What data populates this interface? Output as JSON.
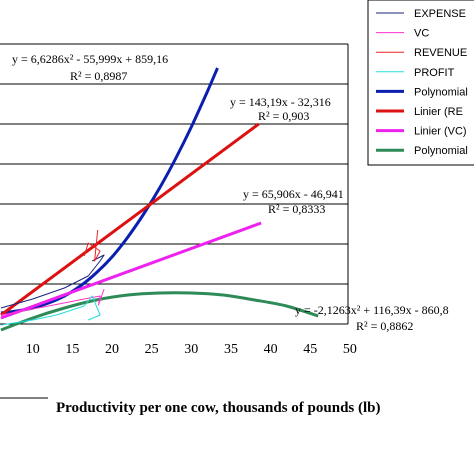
{
  "chart_data": {
    "type": "line",
    "xlabel": "Productivity per one cow, thousands of pounds (lb)",
    "ylabel": "",
    "xlim": [
      6,
      50
    ],
    "x_ticks": [
      10,
      15,
      20,
      25,
      30,
      35,
      40,
      45,
      50
    ],
    "grid": "horizontal",
    "legend_position": "top-right",
    "legend": [
      {
        "label": "EXPENSE",
        "color": "#1a237e",
        "width": 1
      },
      {
        "label": "VC",
        "color": "#ff33cc",
        "width": 1
      },
      {
        "label": "REVENUE",
        "color": "#ee2222",
        "width": 1
      },
      {
        "label": "PROFIT",
        "color": "#22dddd",
        "width": 1
      },
      {
        "label": "Polynomial",
        "color": "#0a1fb0",
        "width": 3
      },
      {
        "label": "Linier  (RE",
        "color": "#dd1111",
        "width": 3
      },
      {
        "label": "Linier (VC)",
        "color": "#ee22ee",
        "width": 3
      },
      {
        "label": "Polynomial",
        "color": "#2e8b57",
        "width": 3
      }
    ],
    "annotations": [
      {
        "line1": "y = 6,6286x² - 55,999x + 859,16",
        "line2": "R² = 0,8987"
      },
      {
        "line1": "y = 143,19x - 32,316",
        "line2": "R² = 0,903"
      },
      {
        "line1": "y = 65,906x - 46,941",
        "line2": "R² = 0,8333"
      },
      {
        "line1": "y = -2,1263x² + 116,39x - 860,8",
        "line2": "R² = 0,8862"
      }
    ],
    "series": [
      {
        "name": "Polynomial",
        "color": "#0a1fb0",
        "width": 3,
        "x": [
          6,
          8,
          10,
          12,
          14,
          16,
          18,
          20,
          22,
          24,
          26,
          28,
          30,
          32,
          33.3
        ],
        "y": [
          1.1,
          1.3,
          1.6,
          2.1,
          2.8,
          3.8,
          5.1,
          6.7,
          8.7,
          11.0,
          13.6,
          16.5,
          19.7,
          23.2,
          25.6
        ]
      },
      {
        "name": "Linier  (RE",
        "color": "#dd1111",
        "width": 3,
        "x": [
          6,
          38.5
        ],
        "y": [
          0.9,
          20.0
        ]
      },
      {
        "name": "Linier (VC)",
        "color": "#ee22ee",
        "width": 3,
        "x": [
          6,
          38.8
        ],
        "y": [
          0.6,
          10.1
        ]
      },
      {
        "name": "Polynomial",
        "color": "#2e8b57",
        "width": 3,
        "x": [
          6,
          10,
          14,
          18,
          22,
          26,
          30,
          34,
          38,
          42,
          46
        ],
        "y": [
          -0.6,
          0.6,
          1.6,
          2.4,
          2.9,
          3.1,
          3.1,
          2.9,
          2.4,
          1.8,
          0.8
        ]
      },
      {
        "name": "EXPENSE",
        "color": "#1a237e",
        "width": 1,
        "x": [
          6,
          10,
          14,
          17,
          18.5,
          19,
          17.5
        ],
        "y": [
          1.6,
          2.5,
          3.6,
          4.8,
          6.3,
          6.9,
          6.3
        ]
      },
      {
        "name": "REVENUE",
        "color": "#ee2222",
        "width": 1,
        "x": [
          16.5,
          17,
          18.5,
          17.8,
          18.2
        ],
        "y": [
          6.8,
          8.1,
          7.3,
          6.3,
          9.4
        ]
      },
      {
        "name": "VC",
        "color": "#ff33cc",
        "width": 1,
        "x": [
          6,
          12,
          16.5,
          18.5,
          18.3,
          19
        ],
        "y": [
          0.9,
          1.8,
          2.5,
          2.8,
          1.9,
          3.5
        ]
      },
      {
        "name": "PROFIT",
        "color": "#22dddd",
        "width": 1,
        "x": [
          6,
          10,
          13,
          16.5,
          17.5,
          18.5,
          17
        ],
        "y": [
          -0.1,
          0.4,
          0.9,
          1.8,
          2.8,
          0.9,
          0.4
        ]
      }
    ]
  }
}
